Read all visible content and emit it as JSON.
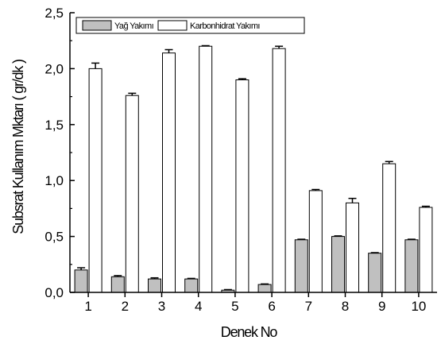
{
  "chart_data": {
    "type": "bar",
    "xlabel": "Denek No",
    "ylabel": "Subsrat Kullanım Mktarı ( gr/dk )",
    "ylim": [
      0,
      2.5
    ],
    "yticks": [
      "0,0",
      "0,5",
      "1,0",
      "1,5",
      "2,0",
      "2,5"
    ],
    "categories": [
      "1",
      "2",
      "3",
      "4",
      "5",
      "6",
      "7",
      "8",
      "9",
      "10"
    ],
    "series": [
      {
        "name": "Yağ Yakımı",
        "color": "#c0c0c0",
        "values": [
          0.2,
          0.14,
          0.12,
          0.12,
          0.02,
          0.07,
          0.47,
          0.5,
          0.35,
          0.47
        ],
        "errors": [
          0.02,
          0.01,
          0.01,
          0.005,
          0.005,
          0.005,
          0.005,
          0.005,
          0.005,
          0.005
        ]
      },
      {
        "name": "Karbonhidrat Yakımı",
        "color": "#ffffff",
        "values": [
          2.0,
          1.76,
          2.14,
          2.2,
          1.9,
          2.18,
          0.91,
          0.8,
          1.15,
          0.76
        ],
        "errors": [
          0.05,
          0.02,
          0.03,
          0.005,
          0.01,
          0.02,
          0.01,
          0.04,
          0.02,
          0.01
        ]
      }
    ],
    "legend_position": "top",
    "grid": false
  }
}
